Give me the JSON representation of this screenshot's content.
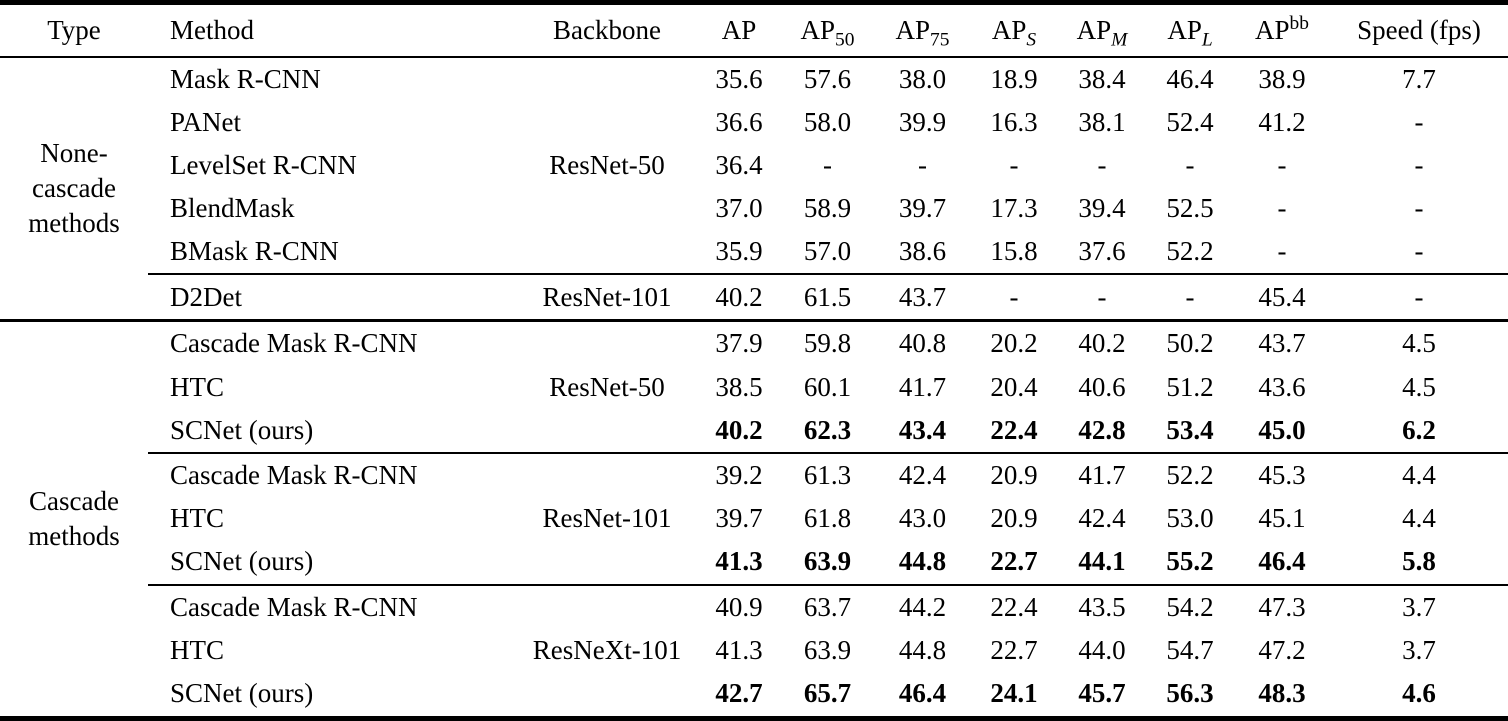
{
  "table": {
    "header": {
      "type": "Type",
      "method": "Method",
      "backbone": "Backbone",
      "ap": "AP",
      "ap50": {
        "base": "AP",
        "sub": "50"
      },
      "ap75": {
        "base": "AP",
        "sub": "75"
      },
      "aps": {
        "base": "AP",
        "sub": "S"
      },
      "apm": {
        "base": "AP",
        "sub": "M"
      },
      "apl": {
        "base": "AP",
        "sub": "L"
      },
      "apbb": {
        "base": "AP",
        "sup": "bb"
      },
      "speed": "Speed (fps)"
    },
    "groups": [
      {
        "type_lines": [
          "None-",
          "cascade",
          "methods"
        ],
        "subgroups": [
          {
            "backbone": "ResNet-50",
            "rows": [
              {
                "method": "Mask R-CNN",
                "bold": false,
                "values": [
                  "35.6",
                  "57.6",
                  "38.0",
                  "18.9",
                  "38.4",
                  "46.4",
                  "38.9",
                  "7.7"
                ]
              },
              {
                "method": "PANet",
                "bold": false,
                "values": [
                  "36.6",
                  "58.0",
                  "39.9",
                  "16.3",
                  "38.1",
                  "52.4",
                  "41.2",
                  "-"
                ]
              },
              {
                "method": "LevelSet R-CNN",
                "bold": false,
                "values": [
                  "36.4",
                  "-",
                  "-",
                  "-",
                  "-",
                  "-",
                  "-",
                  "-"
                ]
              },
              {
                "method": "BlendMask",
                "bold": false,
                "values": [
                  "37.0",
                  "58.9",
                  "39.7",
                  "17.3",
                  "39.4",
                  "52.5",
                  "-",
                  "-"
                ]
              },
              {
                "method": "BMask R-CNN",
                "bold": false,
                "values": [
                  "35.9",
                  "57.0",
                  "38.6",
                  "15.8",
                  "37.6",
                  "52.2",
                  "-",
                  "-"
                ]
              }
            ]
          },
          {
            "backbone": "ResNet-101",
            "rows": [
              {
                "method": "D2Det",
                "bold": false,
                "values": [
                  "40.2",
                  "61.5",
                  "43.7",
                  "-",
                  "-",
                  "-",
                  "45.4",
                  "-"
                ]
              }
            ]
          }
        ]
      },
      {
        "type_lines": [
          "Cascade",
          "methods"
        ],
        "subgroups": [
          {
            "backbone": "ResNet-50",
            "rows": [
              {
                "method": "Cascade Mask R-CNN",
                "bold": false,
                "values": [
                  "37.9",
                  "59.8",
                  "40.8",
                  "20.2",
                  "40.2",
                  "50.2",
                  "43.7",
                  "4.5"
                ]
              },
              {
                "method": "HTC",
                "bold": false,
                "values": [
                  "38.5",
                  "60.1",
                  "41.7",
                  "20.4",
                  "40.6",
                  "51.2",
                  "43.6",
                  "4.5"
                ]
              },
              {
                "method": "SCNet (ours)",
                "bold": true,
                "values": [
                  "40.2",
                  "62.3",
                  "43.4",
                  "22.4",
                  "42.8",
                  "53.4",
                  "45.0",
                  "6.2"
                ]
              }
            ]
          },
          {
            "backbone": "ResNet-101",
            "rows": [
              {
                "method": "Cascade Mask R-CNN",
                "bold": false,
                "values": [
                  "39.2",
                  "61.3",
                  "42.4",
                  "20.9",
                  "41.7",
                  "52.2",
                  "45.3",
                  "4.4"
                ]
              },
              {
                "method": "HTC",
                "bold": false,
                "values": [
                  "39.7",
                  "61.8",
                  "43.0",
                  "20.9",
                  "42.4",
                  "53.0",
                  "45.1",
                  "4.4"
                ]
              },
              {
                "method": "SCNet (ours)",
                "bold": true,
                "values": [
                  "41.3",
                  "63.9",
                  "44.8",
                  "22.7",
                  "44.1",
                  "55.2",
                  "46.4",
                  "5.8"
                ]
              }
            ]
          },
          {
            "backbone": "ResNeXt-101",
            "rows": [
              {
                "method": "Cascade Mask R-CNN",
                "bold": false,
                "values": [
                  "40.9",
                  "63.7",
                  "44.2",
                  "22.4",
                  "43.5",
                  "54.2",
                  "47.3",
                  "3.7"
                ]
              },
              {
                "method": "HTC",
                "bold": false,
                "values": [
                  "41.3",
                  "63.9",
                  "44.8",
                  "22.7",
                  "44.0",
                  "54.7",
                  "47.2",
                  "3.7"
                ]
              },
              {
                "method": "SCNet (ours)",
                "bold": true,
                "values": [
                  "42.7",
                  "65.7",
                  "46.4",
                  "24.1",
                  "45.7",
                  "56.3",
                  "48.3",
                  "4.6"
                ]
              }
            ]
          }
        ]
      }
    ]
  }
}
